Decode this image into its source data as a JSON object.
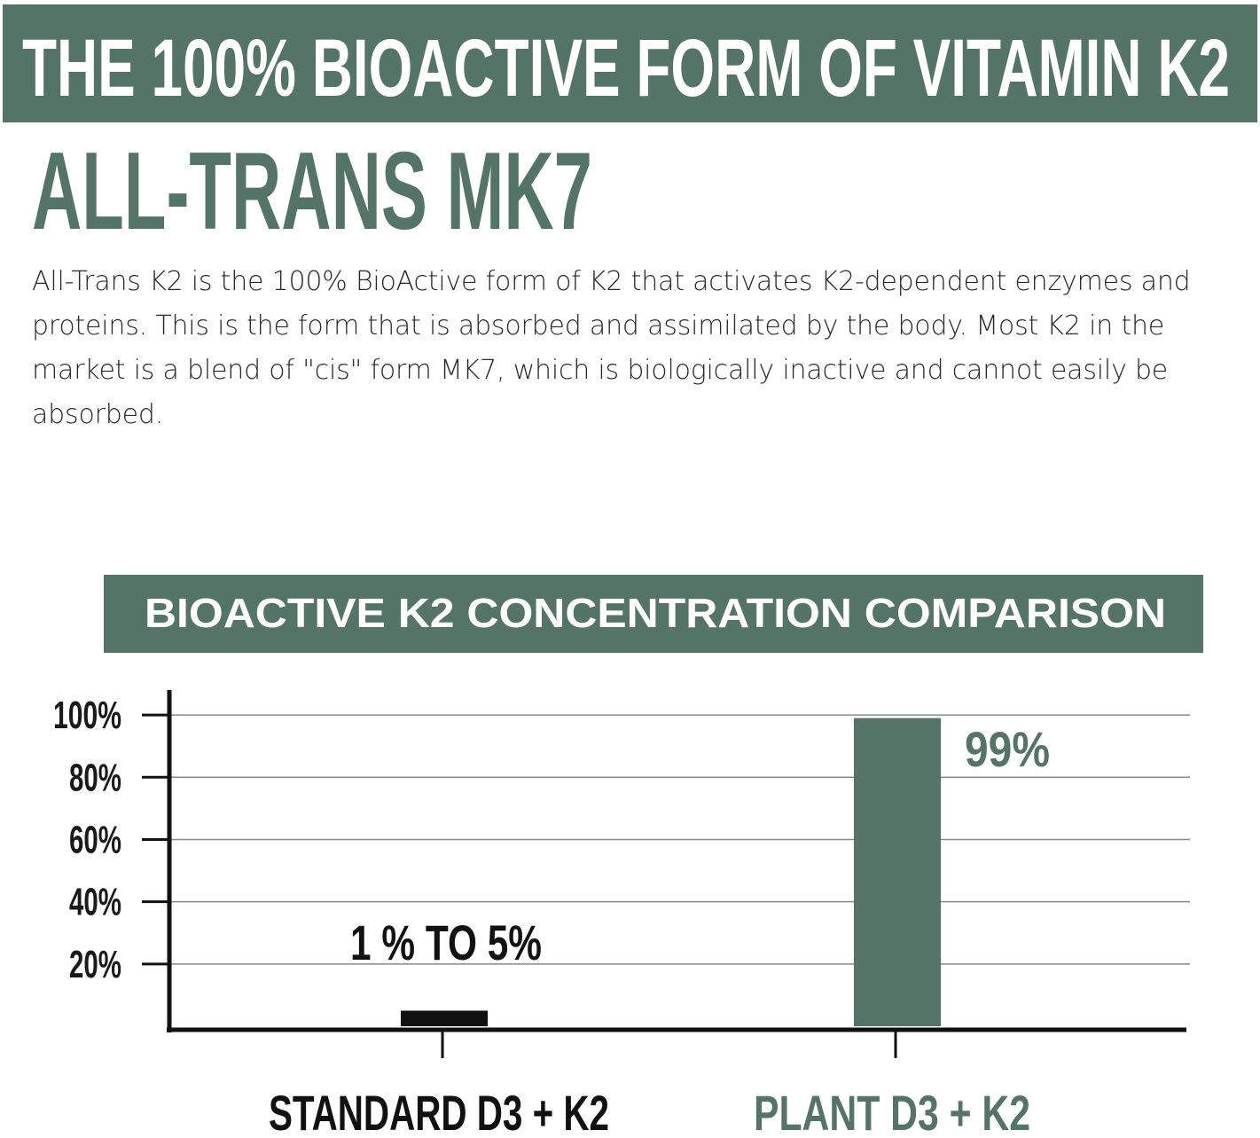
{
  "header": {
    "title": "THE 100% BIOACTIVE FORM OF VITAMIN K2",
    "subtitle": "ALL-TRANS MK7",
    "description": "All-Trans K2 is the 100% BioActive form of K2 that activates K2-dependent enzymes and proteins. This is the form that is absorbed and assimilated by the body. Most K2 in the market is a blend of \"cis\" form MK7, which is biologically inactive and cannot easily be absorbed."
  },
  "chart_data": {
    "type": "bar",
    "title": "BIOACTIVE K2 CONCENTRATION COMPARISON",
    "categories": [
      "STANDARD D3 + K2",
      "PLANT D3 + K2"
    ],
    "values": [
      5,
      99
    ],
    "value_labels": [
      "1 % TO 5%",
      "99%"
    ],
    "colors": [
      "#111111",
      "#547468"
    ],
    "ylim": [
      0,
      108
    ],
    "yticks": [
      {
        "value": 20,
        "label": "20%"
      },
      {
        "value": 40,
        "label": "40%"
      },
      {
        "value": 60,
        "label": "60%"
      },
      {
        "value": 80,
        "label": "80%"
      },
      {
        "value": 100,
        "label": "100%"
      }
    ],
    "grid": true
  }
}
